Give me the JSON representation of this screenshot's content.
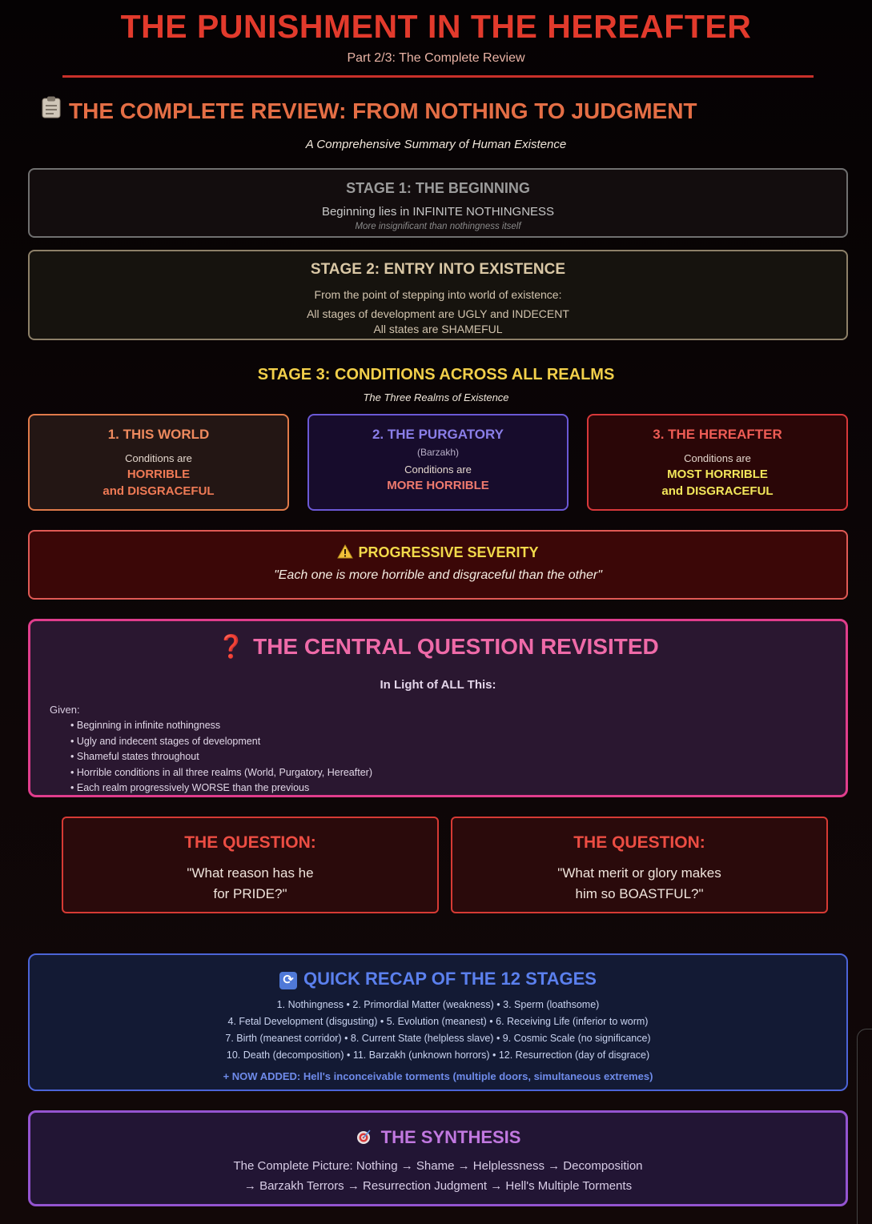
{
  "header": {
    "title": "THE PUNISHMENT IN THE HEREAFTER",
    "subtitle": "Part 2/3: The Complete Review"
  },
  "section": {
    "icon": "clipboard-icon",
    "heading": "THE COMPLETE REVIEW: FROM NOTHING TO JUDGMENT",
    "subheading": "A Comprehensive Summary of Human Existence"
  },
  "stage1": {
    "heading": "STAGE 1: THE BEGINNING",
    "text": "Beginning lies in INFINITE NOTHINGNESS",
    "subtext": "More insignificant than nothingness itself"
  },
  "stage2": {
    "heading": "STAGE 2: ENTRY INTO EXISTENCE",
    "line1": "From the point of stepping into world of existence:",
    "line2": "All stages of development are UGLY and INDECENT",
    "line3": "All states are SHAMEFUL"
  },
  "stage3": {
    "heading": "STAGE 3: CONDITIONS ACROSS ALL REALMS",
    "subheading": "The Three Realms of Existence",
    "realms": [
      {
        "title": "1. THIS WORLD",
        "note": "",
        "conditions": "Conditions are",
        "emph1": "HORRIBLE",
        "emph2": "and DISGRACEFUL",
        "color": "#e07a4a"
      },
      {
        "title": "2. THE PURGATORY",
        "note": "(Barzakh)",
        "conditions": "Conditions are",
        "emph1": "MORE HORRIBLE",
        "emph2": "",
        "color": "#6b59d6"
      },
      {
        "title": "3. THE HEREAFTER",
        "note": "",
        "conditions": "Conditions are",
        "emph1": "MOST HORRIBLE",
        "emph2": "and DISGRACEFUL",
        "color": "#d8383a"
      }
    ]
  },
  "severity": {
    "icon": "warning-icon",
    "heading": "PROGRESSIVE SEVERITY",
    "quote": "\"Each one is more horrible and disgraceful than the other\""
  },
  "central": {
    "icon": "question-mark-icon",
    "heading": "THE CENTRAL QUESTION REVISITED",
    "lead": "In Light of ALL This:",
    "given": "Given:",
    "items": [
      "Beginning in infinite nothingness",
      "Ugly and indecent stages of development",
      "Shameful states throughout",
      "Horrible conditions in all three realms (World, Purgatory, Hereafter)",
      "Each realm progressively WORSE than the previous"
    ]
  },
  "questions": [
    {
      "heading": "THE QUESTION:",
      "line1": "\"What reason has he",
      "line2": "for PRIDE?\""
    },
    {
      "heading": "THE QUESTION:",
      "line1": "\"What merit or glory makes",
      "line2": "him so BOASTFUL?\""
    }
  ],
  "recap": {
    "icon": "repeat-icon",
    "heading": "QUICK RECAP OF THE 12 STAGES",
    "rows": [
      "1. Nothingness • 2. Primordial Matter (weakness) • 3. Sperm (loathsome)",
      "4. Fetal Development (disgusting) • 5. Evolution (meanest) • 6. Receiving Life (inferior to worm)",
      "7. Birth (meanest corridor) • 8. Current State (helpless slave) • 9. Cosmic Scale (no significance)",
      "10. Death (decomposition) • 11. Barzakh (unknown horrors) • 12. Resurrection (day of disgrace)"
    ],
    "added": "+ NOW ADDED: Hell's inconceivable torments (multiple doors, simultaneous extremes)"
  },
  "synthesis": {
    "icon": "target-icon",
    "heading": "THE SYNTHESIS",
    "line1": "The Complete Picture: Nothing → Shame → Helplessness → Decomposition",
    "line2": "→ Barzakh Terrors → Resurrection Judgment → Hell's Multiple Torments"
  }
}
